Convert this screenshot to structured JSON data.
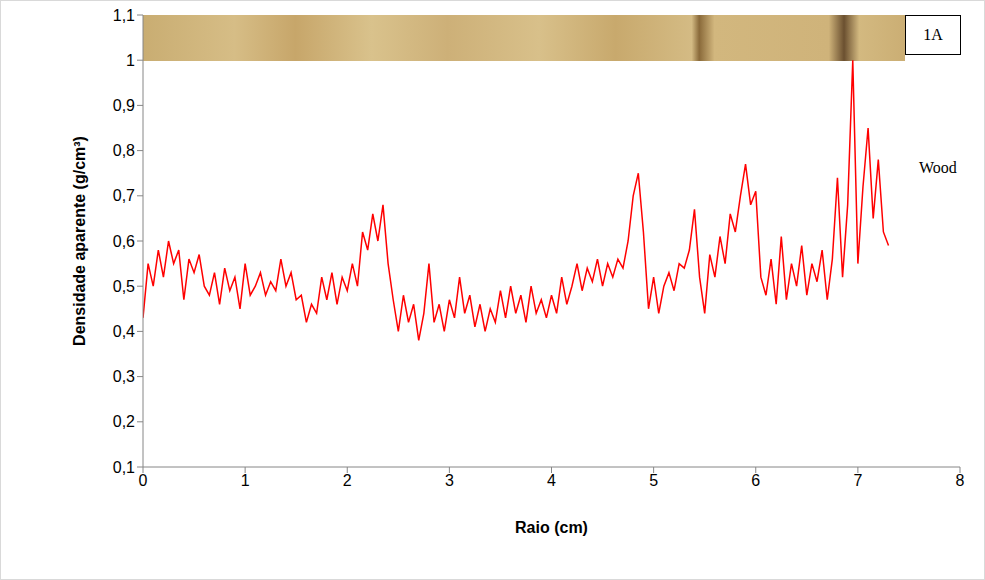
{
  "chart_data": {
    "type": "line",
    "xlabel": "Raio (cm)",
    "ylabel": "Densidade aparente (g/cm³)",
    "annotations": [
      "1A",
      "Wood"
    ],
    "color": "#ff0000",
    "grid": false,
    "xlim": [
      0,
      8
    ],
    "xticks": [
      0,
      1,
      2,
      3,
      4,
      5,
      6,
      7,
      8
    ],
    "ylim": [
      0.1,
      1.1
    ],
    "yticks": [
      {
        "value": 0.1,
        "label": "0,1"
      },
      {
        "value": 0.2,
        "label": "0,2"
      },
      {
        "value": 0.3,
        "label": "0,3"
      },
      {
        "value": 0.4,
        "label": "0,4"
      },
      {
        "value": 0.5,
        "label": "0,5"
      },
      {
        "value": 0.6,
        "label": "0,6"
      },
      {
        "value": 0.7,
        "label": "0,7"
      },
      {
        "value": 0.8,
        "label": "0,8"
      },
      {
        "value": 0.9,
        "label": "0,9"
      },
      1,
      {
        "value": 1.1,
        "label": "1,1"
      }
    ],
    "x": [
      0,
      0.05,
      0.1,
      0.15,
      0.2,
      0.25,
      0.3,
      0.35,
      0.4,
      0.45,
      0.5,
      0.55,
      0.6,
      0.65,
      0.7,
      0.75,
      0.8,
      0.85,
      0.9,
      0.95,
      1,
      1.05,
      1.1,
      1.15,
      1.2,
      1.25,
      1.3,
      1.35,
      1.4,
      1.45,
      1.5,
      1.55,
      1.6,
      1.65,
      1.7,
      1.75,
      1.8,
      1.85,
      1.9,
      1.95,
      2,
      2.05,
      2.1,
      2.15,
      2.2,
      2.25,
      2.3,
      2.35,
      2.4,
      2.45,
      2.5,
      2.55,
      2.6,
      2.65,
      2.7,
      2.75,
      2.8,
      2.85,
      2.9,
      2.95,
      3,
      3.05,
      3.1,
      3.15,
      3.2,
      3.25,
      3.3,
      3.35,
      3.4,
      3.45,
      3.5,
      3.55,
      3.6,
      3.65,
      3.7,
      3.75,
      3.8,
      3.85,
      3.9,
      3.95,
      4,
      4.05,
      4.1,
      4.15,
      4.2,
      4.25,
      4.3,
      4.35,
      4.4,
      4.45,
      4.5,
      4.55,
      4.6,
      4.65,
      4.7,
      4.75,
      4.8,
      4.85,
      4.9,
      4.95,
      5,
      5.05,
      5.1,
      5.15,
      5.2,
      5.25,
      5.3,
      5.35,
      5.4,
      5.45,
      5.5,
      5.55,
      5.6,
      5.65,
      5.7,
      5.75,
      5.8,
      5.85,
      5.9,
      5.95,
      6,
      6.05,
      6.1,
      6.15,
      6.2,
      6.25,
      6.3,
      6.35,
      6.4,
      6.45,
      6.5,
      6.55,
      6.6,
      6.65,
      6.7,
      6.75,
      6.8,
      6.85,
      6.9,
      6.95,
      7,
      7.05,
      7.1,
      7.15,
      7.2,
      7.25,
      7.3
    ],
    "values": [
      0.43,
      0.55,
      0.5,
      0.58,
      0.52,
      0.6,
      0.55,
      0.58,
      0.47,
      0.56,
      0.53,
      0.57,
      0.5,
      0.48,
      0.53,
      0.46,
      0.54,
      0.49,
      0.52,
      0.45,
      0.55,
      0.48,
      0.5,
      0.53,
      0.48,
      0.51,
      0.49,
      0.56,
      0.5,
      0.53,
      0.47,
      0.48,
      0.42,
      0.46,
      0.44,
      0.52,
      0.47,
      0.53,
      0.46,
      0.52,
      0.49,
      0.55,
      0.5,
      0.62,
      0.58,
      0.66,
      0.6,
      0.68,
      0.55,
      0.47,
      0.4,
      0.48,
      0.42,
      0.46,
      0.38,
      0.44,
      0.55,
      0.42,
      0.46,
      0.4,
      0.47,
      0.43,
      0.52,
      0.44,
      0.48,
      0.41,
      0.46,
      0.4,
      0.45,
      0.42,
      0.49,
      0.43,
      0.5,
      0.44,
      0.48,
      0.42,
      0.5,
      0.44,
      0.47,
      0.43,
      0.48,
      0.44,
      0.52,
      0.46,
      0.5,
      0.55,
      0.49,
      0.54,
      0.51,
      0.56,
      0.5,
      0.55,
      0.52,
      0.56,
      0.54,
      0.6,
      0.7,
      0.75,
      0.62,
      0.45,
      0.52,
      0.44,
      0.5,
      0.53,
      0.49,
      0.55,
      0.54,
      0.58,
      0.67,
      0.52,
      0.44,
      0.57,
      0.52,
      0.61,
      0.55,
      0.66,
      0.62,
      0.7,
      0.77,
      0.68,
      0.71,
      0.52,
      0.48,
      0.56,
      0.46,
      0.61,
      0.47,
      0.55,
      0.5,
      0.59,
      0.48,
      0.55,
      0.51,
      0.58,
      0.47,
      0.56,
      0.74,
      0.52,
      0.68,
      1,
      0.55,
      0.72,
      0.85,
      0.65,
      0.78,
      0.62,
      0.59
    ]
  }
}
